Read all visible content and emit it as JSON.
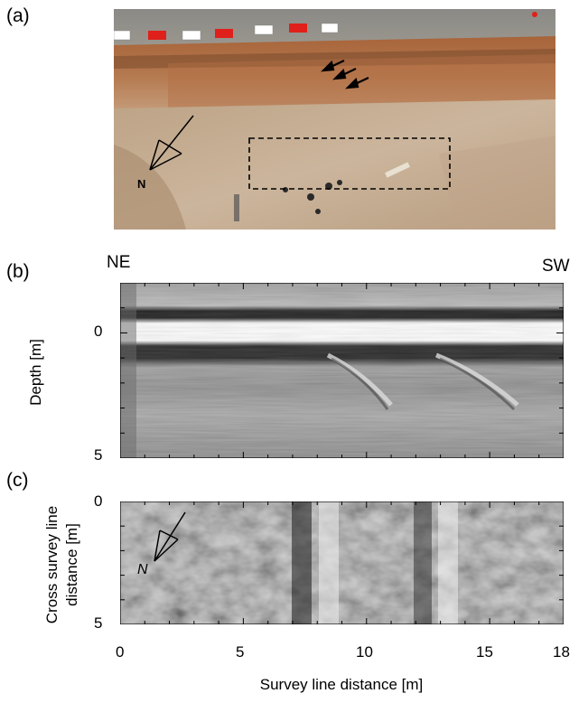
{
  "panels": {
    "a": {
      "label": "(a)",
      "north_label": "N"
    },
    "b": {
      "label": "(b)",
      "left_dir": "NE",
      "right_dir": "SW",
      "ylabel": "Depth  [m]",
      "yticks": [
        "0",
        "5"
      ]
    },
    "c": {
      "label": "(c)",
      "ylabel_line1": "Cross survey line",
      "ylabel_line2": "distance  [m]",
      "yticks": [
        "0",
        "5"
      ],
      "north_label": "N"
    }
  },
  "xaxis": {
    "label": "Survey line distance  [m]",
    "ticks": [
      "0",
      "5",
      "10",
      "15",
      "18"
    ]
  },
  "chart_data": [
    {
      "type": "heatmap",
      "panel": "b",
      "ylabel": "Depth  [m]",
      "xlim": [
        0,
        18
      ],
      "ylim": [
        5,
        -2
      ],
      "yticks": [
        0,
        5
      ]
    },
    {
      "type": "heatmap",
      "panel": "c",
      "ylabel": "Cross survey line distance  [m]",
      "xlabel": "Survey line distance  [m]",
      "xlim": [
        0,
        18
      ],
      "ylim": [
        5,
        0
      ],
      "xticks": [
        0,
        5,
        10,
        15,
        18
      ],
      "yticks": [
        0,
        5
      ]
    }
  ],
  "colors": {
    "soil_light": "#c9a88a",
    "soil_dark": "#a0623a",
    "ground": "#c8b49a",
    "barrier_red": "#e0201a"
  }
}
